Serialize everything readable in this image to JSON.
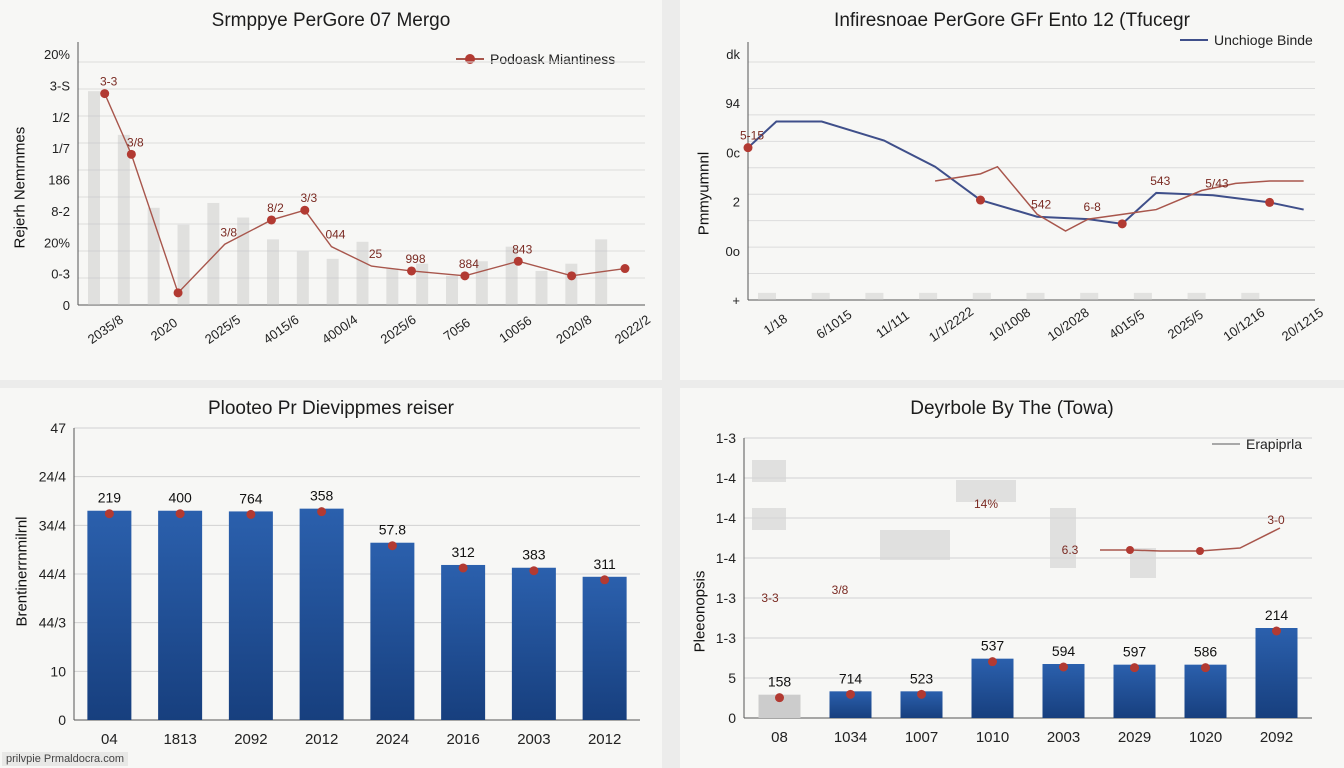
{
  "charts": [
    {
      "id": "tl",
      "type": "line",
      "title": "Srmppye PerGore 07 Mergo",
      "ylabel": "Rejerh Nemrnmes",
      "legend": "Podoask Miantiness",
      "colors": {
        "line": "#a8564c",
        "marker": "#b23a32",
        "grid": "#dcdcdc",
        "bar": "#c4c4c4"
      },
      "ylim": [
        0,
        10
      ],
      "ytick_labels": [
        "0",
        "0-3",
        "20%",
        "8-2",
        "186",
        "1/7",
        "1/2",
        "3-S",
        "20%"
      ],
      "categories": [
        "2035/8",
        "2020",
        "2025/5",
        "4015/6",
        "4000/4",
        "2025/6",
        "7056",
        "10056",
        "2020/8",
        "2022/2"
      ],
      "series_y": [
        8.7,
        6.2,
        0.5,
        2.5,
        3.5,
        3.9,
        2.4,
        1.6,
        1.4,
        1.2,
        1.8,
        1.2,
        1.5
      ],
      "series_x": [
        0.4,
        0.8,
        1.5,
        2.2,
        2.9,
        3.4,
        3.8,
        4.4,
        5.0,
        5.8,
        6.6,
        7.4,
        8.2
      ],
      "point_labels": [
        "3-3",
        "3/8",
        "",
        "3/8",
        "8/2",
        "3/3",
        "044",
        "25",
        "998",
        "884",
        "843",
        "",
        ""
      ],
      "bars": [
        8.8,
        7.0,
        4.0,
        3.3,
        4.2,
        3.6,
        2.7,
        2.2,
        1.9,
        2.6,
        1.5,
        1.7,
        1.2,
        1.8,
        2.4,
        1.4,
        1.7,
        2.7
      ]
    },
    {
      "id": "tr",
      "type": "line",
      "title": "Infiresnoae PerGore GFr Ento 12 (Tfucegr",
      "ylabel": "Pmmyumnnl",
      "legend": "Unchioge Binde",
      "colors": {
        "line": "#3f4f8a",
        "line2": "#a8564c",
        "marker": "#b23a32",
        "grid": "#dcdcdc",
        "bar": "#c8c8c8"
      },
      "ylim": [
        0,
        10
      ],
      "ytick_labels": [
        "+",
        "0o",
        "2",
        "0c",
        "94",
        "dk"
      ],
      "categories": [
        "1/18",
        "6/1015",
        "11/111",
        "1/1/2222",
        "10/1008",
        "10/2028",
        "4015/5",
        "2025/5",
        "10/1216",
        "20/1215"
      ],
      "series_y": [
        6.4,
        7.5,
        7.5,
        6.7,
        5.6,
        4.2,
        3.5,
        3.4,
        3.2,
        4.5,
        4.4,
        4.1,
        3.8
      ],
      "series_x": [
        0.0,
        0.5,
        1.3,
        2.4,
        3.3,
        4.1,
        5.1,
        6.0,
        6.6,
        7.2,
        8.2,
        9.2,
        9.8
      ],
      "series2_y": [
        5.0,
        5.3,
        5.6,
        3.6,
        2.9,
        3.4,
        3.6,
        3.8,
        4.6,
        4.9,
        5.0,
        5.0
      ],
      "series2_x": [
        3.3,
        4.1,
        4.4,
        5.1,
        5.6,
        6.0,
        6.6,
        7.2,
        8.0,
        8.6,
        9.2,
        9.8
      ],
      "point_labels": [
        "5-15",
        "",
        "",
        "",
        "",
        "",
        "542",
        "6-8",
        "",
        "543",
        "5/43",
        ""
      ],
      "bars": [
        0.3,
        0.3,
        0.3,
        0.3,
        0.3,
        0.3,
        0.3,
        0.3,
        0.3,
        0.3
      ]
    },
    {
      "id": "bl",
      "type": "bar",
      "title": "Plooteo Pr Dievippmes reiser",
      "ylabel": "Brentinerrnmilrnl",
      "colors": {
        "bar_top": "#2b60ad",
        "bar_bottom": "#173f7e",
        "marker": "#b23a32",
        "grid": "#d2d2d2"
      },
      "ylim": [
        0,
        42
      ],
      "ytick_labels": [
        "0",
        "10",
        "44/3",
        "44/4",
        "34/4",
        "24/4",
        "47"
      ],
      "categories": [
        "04",
        "1813",
        "2092",
        "2012",
        "2024",
        "2016",
        "2003",
        "2012"
      ],
      "values": [
        30.1,
        30.1,
        30.0,
        30.4,
        25.5,
        22.3,
        21.9,
        20.6
      ],
      "value_labels": [
        "219",
        "400",
        "764",
        "358",
        "57.8",
        "312",
        "383",
        "311"
      ]
    },
    {
      "id": "br",
      "type": "bar",
      "title": "Deyrbole By The (Towa)",
      "ylabel": "Pleeonopsis",
      "legend": "Erapiprla",
      "colors": {
        "bar_top": "#2b60ad",
        "bar_bottom": "#173f7e",
        "bar_first": "#cccccc",
        "marker": "#b23a32",
        "line": "#a8564c",
        "grid": "#d2d2d2"
      },
      "ylim": [
        0,
        42
      ],
      "ytick_labels": [
        "0",
        "5",
        "1-3",
        "1-3",
        "1-4",
        "1-4",
        "1-4",
        "1-3"
      ],
      "categories": [
        "08",
        "1034",
        "1007",
        "1010",
        "2003",
        "2029",
        "1020",
        "2092"
      ],
      "values": [
        3.5,
        4.0,
        4.0,
        8.9,
        8.1,
        8.0,
        8.0,
        13.5
      ],
      "value_labels": [
        "158",
        "714",
        "523",
        "537",
        "594",
        "597",
        "586",
        "214"
      ],
      "scatter_labels": [
        "3-3",
        "3/8",
        "14%",
        "6.3",
        "3-0"
      ]
    }
  ],
  "watermark": "prilvpie Prmaldocra.com"
}
